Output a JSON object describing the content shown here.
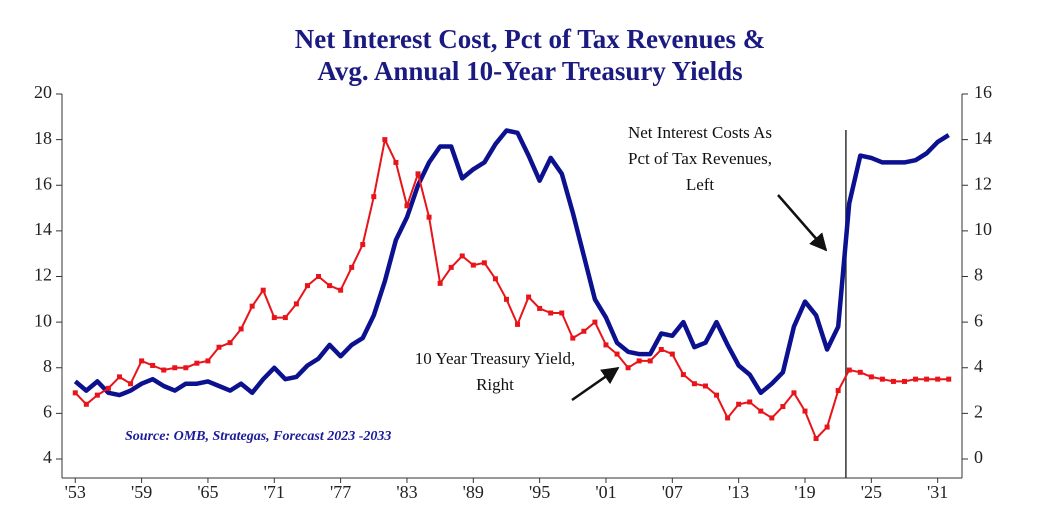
{
  "chart_data": {
    "type": "line",
    "title": [
      "Net Interest Cost, Pct of Tax Revenues &",
      "Avg. Annual 10-Year Treasury Yields"
    ],
    "source": "Source: OMB, Strategas, Forecast 2023 -2033",
    "annotations": [
      {
        "lines": [
          "Net Interest Costs As",
          "Pct of Tax Revenues,",
          "Left"
        ]
      },
      {
        "lines": [
          "10 Year Treasury Yield,",
          "Right"
        ]
      }
    ],
    "x": [
      1953,
      1954,
      1955,
      1956,
      1957,
      1958,
      1959,
      1960,
      1961,
      1962,
      1963,
      1964,
      1965,
      1966,
      1967,
      1968,
      1969,
      1970,
      1971,
      1972,
      1973,
      1974,
      1975,
      1976,
      1977,
      1978,
      1979,
      1980,
      1981,
      1982,
      1983,
      1984,
      1985,
      1986,
      1987,
      1988,
      1989,
      1990,
      1991,
      1992,
      1993,
      1994,
      1995,
      1996,
      1997,
      1998,
      1999,
      2000,
      2001,
      2002,
      2003,
      2004,
      2005,
      2006,
      2007,
      2008,
      2009,
      2010,
      2011,
      2012,
      2013,
      2014,
      2015,
      2016,
      2017,
      2018,
      2019,
      2020,
      2021,
      2022,
      2023,
      2024,
      2025,
      2026,
      2027,
      2028,
      2029,
      2030,
      2031,
      2032
    ],
    "series": [
      {
        "name": "Net Interest Costs As Pct of Tax Revenues",
        "color": "#0c1190",
        "axis": "y",
        "values": [
          7.4,
          7.0,
          7.4,
          6.9,
          6.8,
          7.0,
          7.3,
          7.5,
          7.2,
          7.0,
          7.3,
          7.3,
          7.4,
          7.2,
          7.0,
          7.3,
          6.9,
          7.5,
          8.0,
          7.5,
          7.6,
          8.1,
          8.4,
          9.0,
          8.5,
          9.0,
          9.3,
          10.3,
          11.8,
          13.6,
          14.6,
          16.0,
          17.0,
          17.7,
          17.7,
          16.3,
          16.7,
          17.0,
          17.8,
          18.4,
          18.3,
          17.3,
          16.2,
          17.2,
          16.5,
          14.8,
          12.9,
          11.0,
          10.2,
          9.1,
          8.7,
          8.6,
          8.6,
          9.5,
          9.4,
          10.0,
          8.9,
          9.1,
          10.0,
          9.0,
          8.1,
          7.7,
          6.9,
          7.3,
          7.8,
          9.8,
          10.9,
          10.3,
          8.8,
          9.8,
          15.2,
          17.3,
          17.2,
          17.0,
          17.0,
          17.0,
          17.1,
          17.4,
          17.9,
          18.2
        ]
      },
      {
        "name": "10 Year Treasury Yield",
        "color": "#e8141a",
        "axis": "y2",
        "values": [
          2.9,
          2.4,
          2.8,
          3.1,
          3.6,
          3.3,
          4.3,
          4.1,
          3.9,
          4.0,
          4.0,
          4.2,
          4.3,
          4.9,
          5.1,
          5.7,
          6.7,
          7.4,
          6.2,
          6.2,
          6.8,
          7.6,
          8.0,
          7.6,
          7.4,
          8.4,
          9.4,
          11.5,
          14.0,
          13.0,
          11.1,
          12.5,
          10.6,
          7.7,
          8.4,
          8.9,
          8.5,
          8.6,
          7.9,
          7.0,
          5.9,
          7.1,
          6.6,
          6.4,
          6.4,
          5.3,
          5.6,
          6.0,
          5.0,
          4.6,
          4.0,
          4.3,
          4.3,
          4.8,
          4.6,
          3.7,
          3.3,
          3.2,
          2.8,
          1.8,
          2.4,
          2.5,
          2.1,
          1.8,
          2.3,
          2.9,
          2.1,
          0.9,
          1.4,
          3.0,
          3.9,
          3.8,
          3.6,
          3.5,
          3.4,
          3.4,
          3.5,
          3.5,
          3.5,
          3.5
        ]
      }
    ],
    "forecast_line_x": 2022.7,
    "xlim": [
      1951.8,
      2033.2
    ],
    "xticks": [
      {
        "value": 1953,
        "label": "'53"
      },
      {
        "value": 1959,
        "label": "'59"
      },
      {
        "value": 1965,
        "label": "'65"
      },
      {
        "value": 1971,
        "label": "'71"
      },
      {
        "value": 1977,
        "label": "'77"
      },
      {
        "value": 1983,
        "label": "'83"
      },
      {
        "value": 1989,
        "label": "'89"
      },
      {
        "value": 1995,
        "label": "'95"
      },
      {
        "value": 2001,
        "label": "'01"
      },
      {
        "value": 2007,
        "label": "'07"
      },
      {
        "value": 2013,
        "label": "'13"
      },
      {
        "value": 2019,
        "label": "'19"
      },
      {
        "value": 2025,
        "label": "'25"
      },
      {
        "value": 2031,
        "label": "'31"
      }
    ],
    "ylim": [
      4,
      20
    ],
    "yticks": [
      4,
      6,
      8,
      10,
      12,
      14,
      16,
      18,
      20
    ],
    "y2lim": [
      0,
      16
    ],
    "y2ticks": [
      0,
      2,
      4,
      6,
      8,
      10,
      12,
      14,
      16
    ],
    "grid": false
  }
}
